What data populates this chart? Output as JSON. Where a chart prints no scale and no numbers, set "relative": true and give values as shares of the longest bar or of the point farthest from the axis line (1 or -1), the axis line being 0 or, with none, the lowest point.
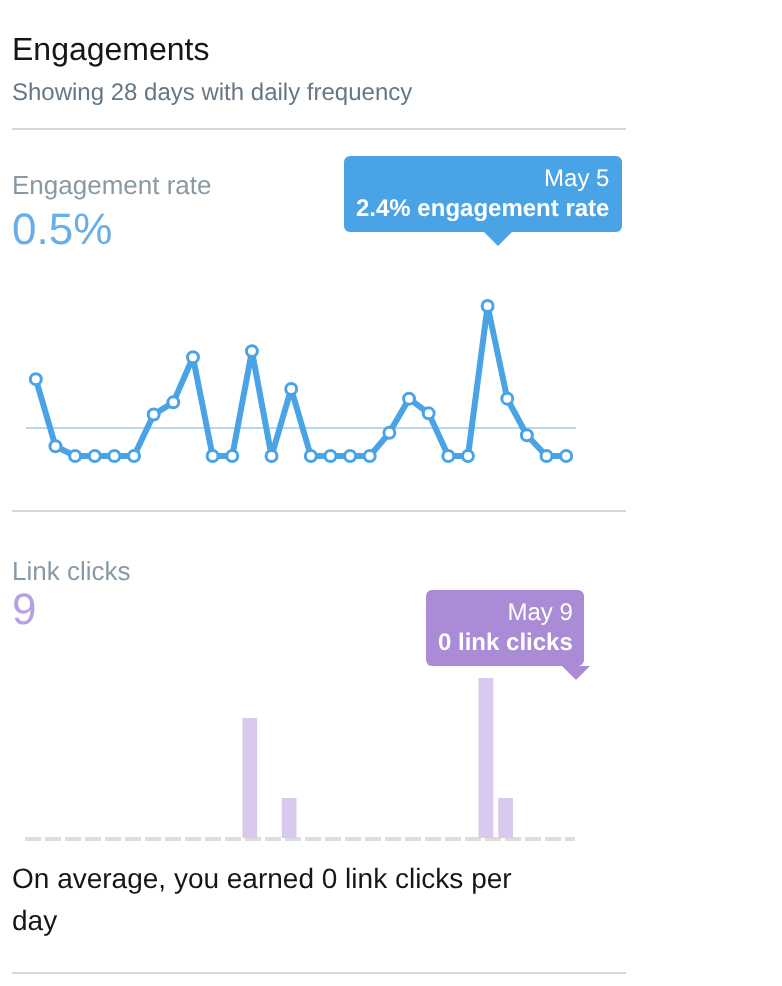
{
  "chart_data": [
    {
      "type": "line",
      "title": "Engagements",
      "subtitle": "Showing 28 days with daily frequency",
      "relative": true,
      "marker": "circle",
      "line_style": "solid",
      "categories": [
        null,
        null,
        null,
        null,
        null,
        null,
        null,
        null,
        null,
        null,
        null,
        null,
        null,
        null,
        null,
        null,
        null,
        null,
        null,
        null,
        null,
        null,
        null,
        null,
        null,
        null,
        null,
        null
      ],
      "series": [
        {
          "color": "#4aa3e5",
          "values": [
            0.4,
            -0.15,
            -0.23,
            -0.23,
            -0.23,
            -0.23,
            0.11,
            0.21,
            0.58,
            -0.23,
            -0.23,
            0.63,
            -0.23,
            0.32,
            -0.23,
            -0.23,
            -0.23,
            -0.23,
            -0.04,
            0.24,
            0.12,
            -0.23,
            -0.23,
            1,
            0.24,
            -0.06,
            -0.23,
            -0.23
          ]
        }
      ],
      "ref_lines": [
        {
          "axis": "y",
          "value": 0,
          "color": "#b5d9f5"
        }
      ],
      "annotations": [
        "Engagement rate",
        "0.5%",
        "May 5",
        "2.4% engagement rate"
      ]
    },
    {
      "type": "bar",
      "relative": true,
      "categories": [
        null,
        null,
        null,
        null,
        null,
        null,
        null,
        null,
        null,
        null,
        null,
        null,
        null,
        null,
        null,
        null,
        null,
        null,
        null,
        null,
        null,
        null,
        null,
        null,
        null,
        null,
        null,
        null
      ],
      "series": [
        {
          "color": "#d9c9ee",
          "values": [
            0,
            0,
            0,
            0,
            0,
            0,
            0,
            0,
            0,
            0,
            0,
            0.75,
            0,
            0.25,
            0,
            0,
            0,
            0,
            0,
            0,
            0,
            0,
            0,
            1,
            0.25,
            0,
            0,
            0
          ]
        }
      ],
      "annotations": [
        "Link clicks",
        "9",
        "May 9",
        "0 link clicks",
        "On average, you earned 0 link clicks per day"
      ]
    }
  ]
}
